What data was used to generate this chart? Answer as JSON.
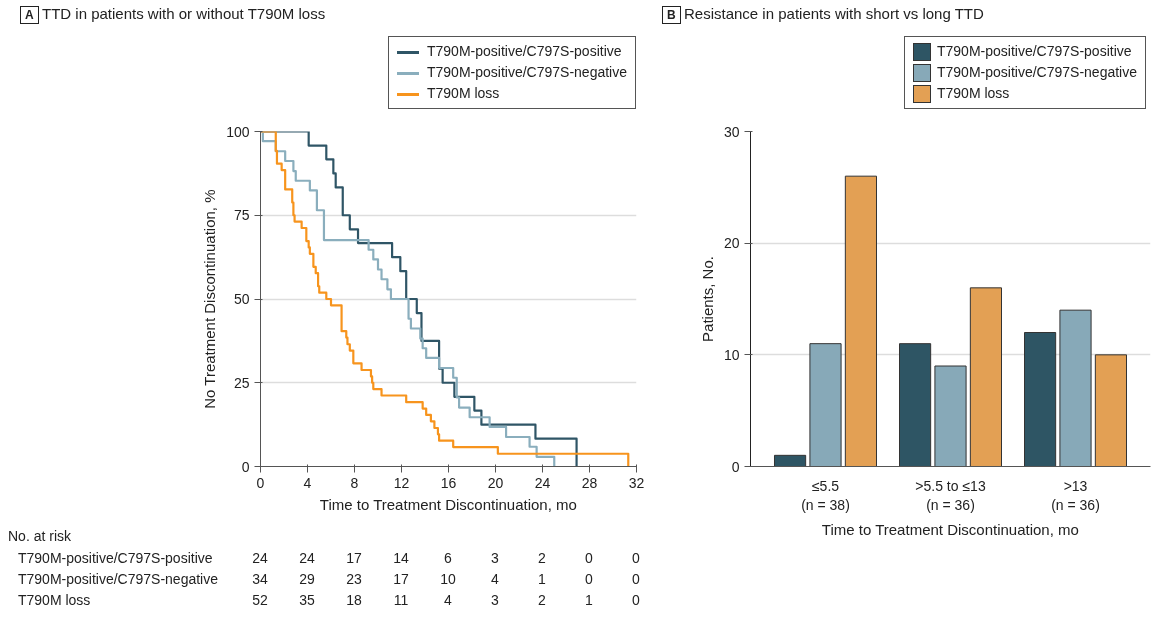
{
  "chart_data": [
    {
      "type": "step",
      "title": "TTD in patients with or without T790M loss",
      "xlabel": "Time to Treatment Discontinuation, mo",
      "ylabel": "No Treatment Discontinuation, %",
      "xlim": [
        0,
        32
      ],
      "xticks": [
        0,
        4,
        8,
        12,
        16,
        20,
        24,
        28,
        32
      ],
      "ylim": [
        0,
        100
      ],
      "yticks": [
        0,
        25,
        50,
        75,
        100
      ],
      "grid": "y",
      "legend": "top right",
      "series": [
        {
          "name": "T790M-positive/C797S-positive",
          "color": "#2f5566",
          "x": [
            0,
            4.1,
            5.6,
            6.2,
            6.4,
            7.0,
            7.6,
            8.3,
            11.2,
            11.9,
            12.4,
            13.3,
            13.7,
            15.2,
            15.5,
            16.5,
            18.2,
            18.8,
            23.4,
            26.9
          ],
          "values": [
            100,
            95.8,
            91.7,
            87.5,
            83.3,
            75.0,
            70.8,
            66.7,
            62.5,
            58.3,
            50.0,
            45.8,
            37.5,
            29.2,
            25.0,
            20.8,
            16.7,
            12.5,
            8.3,
            0
          ]
        },
        {
          "name": "T790M-positive/C797S-negative",
          "color": "#8aaebd",
          "x": [
            0,
            0.2,
            1.3,
            2.1,
            2.8,
            3.0,
            4.2,
            4.8,
            5.4,
            9.2,
            9.6,
            10.0,
            10.3,
            10.8,
            11.1,
            12.6,
            12.8,
            13.6,
            13.8,
            14.1,
            15.2,
            16.4,
            16.7,
            16.9,
            17.8,
            19.5,
            20.9,
            22.9,
            23.5,
            25.0
          ],
          "values": [
            100,
            97.1,
            94.1,
            91.2,
            88.2,
            85.3,
            82.4,
            76.5,
            67.6,
            64.7,
            61.8,
            58.8,
            55.9,
            52.9,
            50.0,
            44.1,
            41.2,
            38.2,
            35.3,
            32.4,
            29.4,
            26.5,
            20.6,
            17.6,
            14.7,
            11.8,
            8.8,
            5.9,
            2.9,
            0
          ]
        },
        {
          "name": "T790M loss",
          "color": "#f7941d",
          "x": [
            0,
            1.3,
            1.4,
            1.8,
            2.1,
            2.7,
            2.8,
            2.9,
            3.5,
            3.9,
            4.1,
            4.2,
            4.5,
            4.7,
            4.9,
            5.0,
            5.6,
            6.0,
            6.9,
            7.3,
            7.4,
            7.6,
            7.9,
            8.6,
            9.4,
            9.5,
            9.6,
            10.3,
            12.4,
            13.8,
            14.1,
            14.5,
            14.8,
            15.1,
            15.2,
            16.4,
            20.2,
            31.3
          ],
          "values": [
            100,
            94.2,
            90.4,
            88.5,
            82.7,
            78.8,
            75.0,
            73.1,
            71.2,
            67.3,
            65.4,
            63.5,
            59.6,
            57.7,
            53.8,
            51.9,
            50.0,
            48.1,
            40.4,
            38.5,
            36.5,
            34.6,
            30.8,
            28.8,
            26.9,
            25.0,
            23.1,
            21.2,
            19.2,
            17.3,
            15.4,
            13.5,
            11.5,
            9.6,
            7.7,
            5.8,
            3.8,
            0
          ]
        }
      ],
      "annotations": [
        "A",
        "No. at risk",
        "24",
        "24",
        "17",
        "14",
        "6",
        "3",
        "2",
        "0",
        "0",
        "34",
        "29",
        "23",
        "17",
        "10",
        "4",
        "1",
        "0",
        "0",
        "52",
        "35",
        "18",
        "11",
        "4",
        "3",
        "2",
        "1",
        "0"
      ]
    },
    {
      "type": "bar",
      "title": "Resistance in patients with short vs long TTD",
      "xlabel": "Time to Treatment Discontinuation, mo",
      "ylabel": "Patients, No.",
      "categories": [
        "≤5.5\n(n = 38)",
        ">5.5 to ≤13\n(n = 36)",
        ">13\n(n = 36)"
      ],
      "ylim": [
        0,
        30
      ],
      "yticks": [
        0,
        10,
        20,
        30
      ],
      "grid": "y",
      "legend": "top right",
      "series": [
        {
          "name": "T790M-positive/C797S-positive",
          "color": "#2e5564",
          "values": [
            1,
            11,
            12
          ]
        },
        {
          "name": "T790M-positive/C797S-negative",
          "color": "#87a9b8",
          "values": [
            11,
            9,
            14
          ]
        },
        {
          "name": "T790M loss",
          "color": "#e3a054",
          "values": [
            26,
            16,
            10
          ]
        }
      ],
      "annotations": [
        "B"
      ]
    }
  ]
}
